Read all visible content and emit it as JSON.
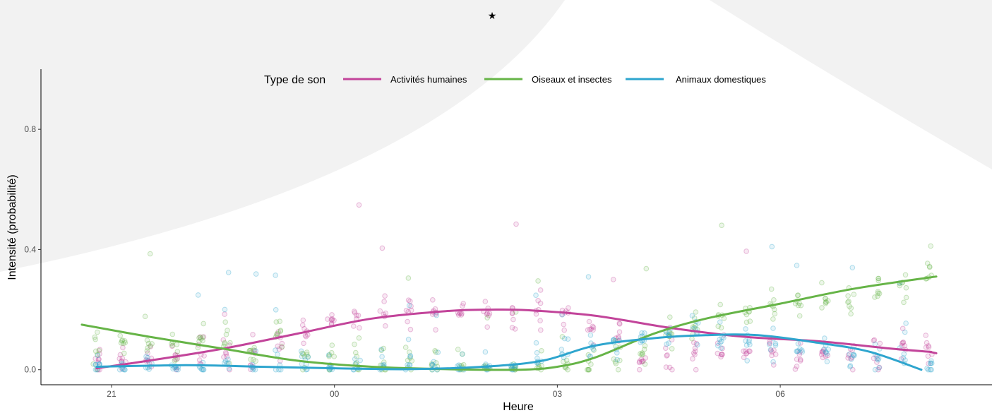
{
  "star": "★",
  "chart_data": {
    "type": "scatter",
    "title": "",
    "xlabel": "Heure",
    "ylabel": "Intensité (probabilité)",
    "x_ticks": [
      {
        "label": "21",
        "hour": 21
      },
      {
        "label": "00",
        "hour": 24
      },
      {
        "label": "03",
        "hour": 27
      },
      {
        "label": "06",
        "hour": 30
      }
    ],
    "y_ticks": [
      {
        "label": "0.0",
        "value": 0.0
      },
      {
        "label": "0.4",
        "value": 0.4
      },
      {
        "label": "0.8",
        "value": 0.8
      }
    ],
    "xlim": [
      20.05,
      32.85
    ],
    "ylim": [
      -0.05,
      1.0
    ],
    "grid": false,
    "legend": {
      "title": "Type de son",
      "placement": "top",
      "entries": [
        "Activités humaines",
        "Oiseaux et insectes",
        "Animaux domestiques"
      ]
    },
    "series": [
      {
        "name": "Activités humaines",
        "color": "#C2449A",
        "smooth": [
          [
            20.8,
            0.005
          ],
          [
            21.5,
            0.03
          ],
          [
            22.5,
            0.07
          ],
          [
            23.5,
            0.12
          ],
          [
            24.5,
            0.17
          ],
          [
            25.5,
            0.195
          ],
          [
            26.1,
            0.2
          ],
          [
            26.6,
            0.198
          ],
          [
            27.5,
            0.18
          ],
          [
            28.5,
            0.14
          ],
          [
            29.5,
            0.11
          ],
          [
            30.5,
            0.095
          ],
          [
            31.5,
            0.07
          ],
          [
            32.0,
            0.06
          ],
          [
            32.0,
            0.06
          ],
          [
            32.1,
            0.055
          ]
        ],
        "hourly_mean": [
          0.03,
          0.03,
          0.03,
          0.04,
          0.05,
          0.05,
          0.06,
          0.08,
          0.12,
          0.16,
          0.19,
          0.19,
          0.19,
          0.19,
          0.19,
          0.18,
          0.19,
          0.19,
          0.19,
          0.14,
          0.1,
          0.03,
          0.05,
          0.05,
          0.06,
          0.06,
          0.06,
          0.05,
          0.05,
          0.04,
          0.04,
          0.08,
          0.08
        ]
      },
      {
        "name": "Oiseaux et insectes",
        "color": "#66B447",
        "smooth": [
          [
            20.6,
            0.15
          ],
          [
            21.5,
            0.11
          ],
          [
            22.5,
            0.07
          ],
          [
            23.5,
            0.03
          ],
          [
            24.5,
            0.01
          ],
          [
            25.5,
            0.002
          ],
          [
            26.5,
            0.0
          ],
          [
            27.0,
            0.01
          ],
          [
            27.5,
            0.04
          ],
          [
            28.3,
            0.12
          ],
          [
            29.0,
            0.17
          ],
          [
            30.0,
            0.22
          ],
          [
            31.0,
            0.27
          ],
          [
            32.1,
            0.31
          ]
        ],
        "hourly_mean": [
          0.06,
          0.09,
          0.08,
          0.09,
          0.1,
          0.08,
          0.07,
          0.12,
          0.05,
          0.04,
          0.05,
          0.03,
          0.03,
          0.02,
          0.01,
          0.01,
          0.01,
          0.01,
          0.01,
          0.02,
          0.03,
          0.06,
          0.12,
          0.15,
          0.18,
          0.2,
          0.21,
          0.22,
          0.23,
          0.24,
          0.26,
          0.28,
          0.3
        ]
      },
      {
        "name": "Animaux domestiques",
        "color": "#2EA5CE",
        "smooth": [
          [
            20.8,
            0.01
          ],
          [
            22.0,
            0.015
          ],
          [
            23.0,
            0.01
          ],
          [
            24.0,
            0.005
          ],
          [
            25.0,
            0.002
          ],
          [
            26.0,
            0.01
          ],
          [
            26.8,
            0.03
          ],
          [
            27.5,
            0.08
          ],
          [
            28.3,
            0.105
          ],
          [
            29.0,
            0.115
          ],
          [
            29.7,
            0.115
          ],
          [
            30.5,
            0.09
          ],
          [
            31.2,
            0.06
          ],
          [
            31.9,
            0.0
          ]
        ],
        "hourly_mean": [
          0.01,
          0.01,
          0.01,
          0.01,
          0.01,
          0.02,
          0.01,
          0.01,
          0.01,
          0.01,
          0.01,
          0.01,
          0.01,
          0.01,
          0.01,
          0.01,
          0.01,
          0.03,
          0.06,
          0.08,
          0.09,
          0.1,
          0.12,
          0.13,
          0.1,
          0.09,
          0.08,
          0.07,
          0.06,
          0.05,
          0.04,
          0.03,
          0.02
        ]
      }
    ]
  }
}
